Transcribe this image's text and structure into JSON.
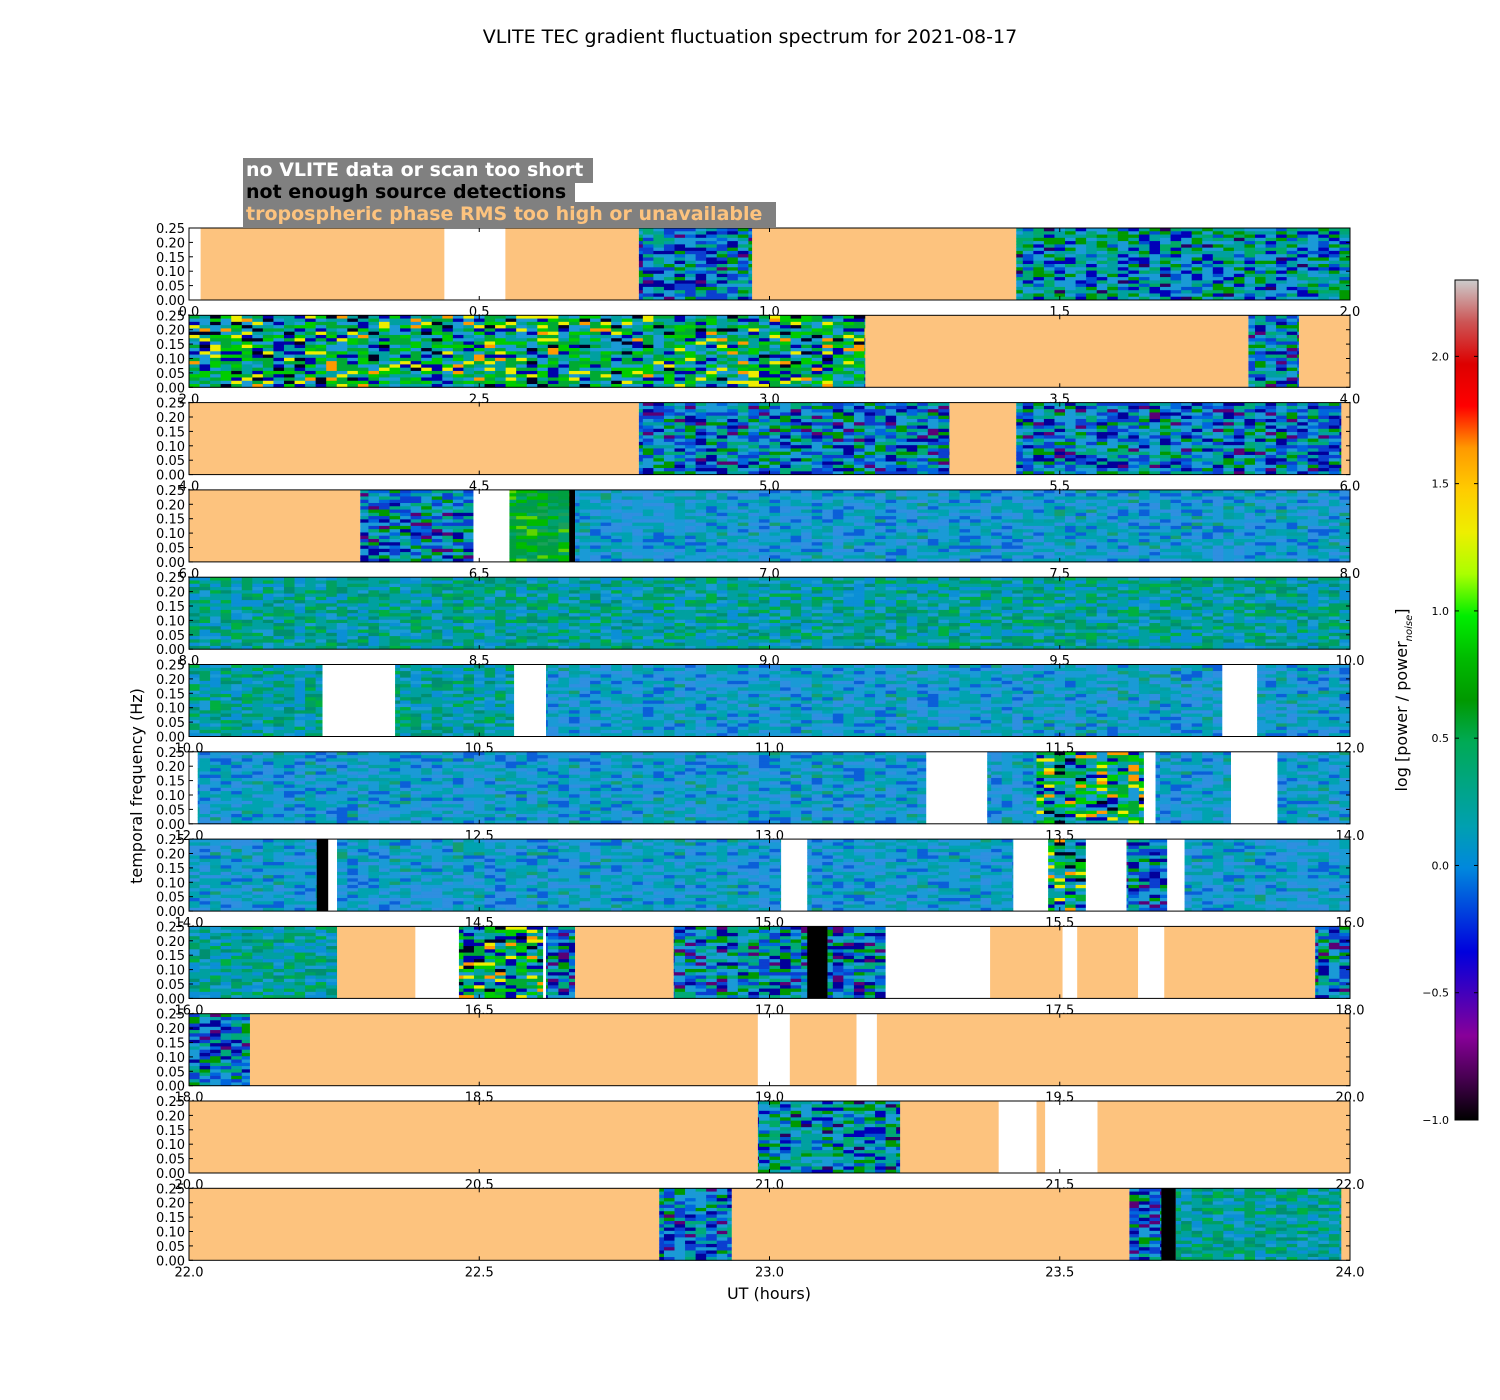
{
  "chart_data": {
    "type": "heatmap",
    "title": "VLITE TEC gradient fluctuation spectrum for 2021-08-17",
    "xlabel": "UT (hours)",
    "ylabel": "temporal frequency (Hz)",
    "ylim": [
      0,
      0.25
    ],
    "yticks": [
      "0.00",
      "0.05",
      "0.10",
      "0.15",
      "0.20",
      "0.25"
    ],
    "colorbar": {
      "label": "log [power / power",
      "label_sub": "noise",
      "label_end": "]",
      "range": [
        -1.0,
        2.3
      ],
      "ticks": [
        "-1.0",
        "-0.5",
        "0.0",
        "0.5",
        "1.0",
        "1.5",
        "2.0"
      ],
      "colormap": "nipy_spectral"
    },
    "legend": [
      {
        "label": "no VLITE data or scan too short",
        "text_color": "#ffffff",
        "box_color": "#808080"
      },
      {
        "label": "not enough source detections",
        "text_color": "#000000",
        "box_color": "#808080"
      },
      {
        "label": "tropospheric phase RMS too high or unavailable",
        "text_color": "#fdc37e",
        "box_color": "#808080"
      }
    ],
    "status_colors": {
      "nodata": "#ffffff",
      "nodet": "#000000",
      "trop": "#fdc37e"
    },
    "panels": [
      {
        "range": [
          0,
          2
        ],
        "xticks": [
          "0.0",
          "0.5",
          "1.0",
          "1.5",
          "2.0"
        ],
        "segments": [
          [
            "w",
            0.0,
            0.02
          ],
          [
            "t",
            0.02,
            0.44
          ],
          [
            "w",
            0.44,
            0.545
          ],
          [
            "t",
            0.545,
            0.775
          ],
          [
            "d",
            0.775,
            0.97,
            1
          ],
          [
            "t",
            0.97,
            1.425
          ],
          [
            "d",
            1.425,
            2.0,
            2
          ]
        ]
      },
      {
        "range": [
          2,
          4
        ],
        "xticks": [
          "2.0",
          "2.5",
          "3.0",
          "3.5",
          "4.0"
        ],
        "segments": [
          [
            "d",
            2.0,
            3.165,
            3
          ],
          [
            "t",
            3.165,
            3.825
          ],
          [
            "d",
            3.825,
            3.912,
            1
          ],
          [
            "t",
            3.912,
            4.0
          ]
        ]
      },
      {
        "range": [
          4,
          6
        ],
        "xticks": [
          "4.0",
          "4.5",
          "5.0",
          "5.5",
          "6.0"
        ],
        "segments": [
          [
            "t",
            4.0,
            4.775
          ],
          [
            "d",
            4.775,
            5.31,
            1
          ],
          [
            "t",
            5.31,
            5.425
          ],
          [
            "d",
            5.425,
            5.985,
            1
          ],
          [
            "t",
            5.985,
            6.0
          ]
        ]
      },
      {
        "range": [
          6,
          8
        ],
        "xticks": [
          "6.0",
          "6.5",
          "7.0",
          "7.5",
          "8.0"
        ],
        "segments": [
          [
            "t",
            6.0,
            6.295
          ],
          [
            "d",
            6.295,
            6.49,
            1
          ],
          [
            "w",
            6.49,
            6.552
          ],
          [
            "d",
            6.552,
            6.655,
            5
          ],
          [
            "k",
            6.655,
            6.665
          ],
          [
            "d",
            6.665,
            8.0,
            0
          ]
        ]
      },
      {
        "range": [
          8,
          10
        ],
        "xticks": [
          "8.0",
          "8.5",
          "9.0",
          "9.5",
          "10.0"
        ],
        "segments": [
          [
            "d",
            8.0,
            10.0,
            4
          ]
        ]
      },
      {
        "range": [
          10,
          12
        ],
        "xticks": [
          "10.0",
          "10.5",
          "11.0",
          "11.5",
          "12.0"
        ],
        "segments": [
          [
            "d",
            10.0,
            10.23,
            4
          ],
          [
            "w",
            10.23,
            10.355
          ],
          [
            "d",
            10.355,
            10.56,
            4
          ],
          [
            "w",
            10.56,
            10.615
          ],
          [
            "d",
            10.615,
            11.78,
            0
          ],
          [
            "w",
            11.78,
            11.84
          ],
          [
            "d",
            11.84,
            12.0,
            0
          ]
        ]
      },
      {
        "range": [
          12,
          14
        ],
        "xticks": [
          "12.0",
          "12.5",
          "13.0",
          "13.5",
          "14.0"
        ],
        "segments": [
          [
            "w",
            12.0,
            12.015
          ],
          [
            "d",
            12.015,
            13.27,
            0
          ],
          [
            "w",
            13.27,
            13.375
          ],
          [
            "d",
            13.375,
            13.46,
            0
          ],
          [
            "d",
            13.46,
            13.645,
            3
          ],
          [
            "w",
            13.645,
            13.665
          ],
          [
            "d",
            13.665,
            13.795,
            0
          ],
          [
            "w",
            13.795,
            13.875
          ],
          [
            "d",
            13.875,
            14.0,
            0
          ]
        ]
      },
      {
        "range": [
          14,
          16
        ],
        "xticks": [
          "14.0",
          "14.5",
          "15.0",
          "15.5",
          "16.0"
        ],
        "segments": [
          [
            "d",
            14.0,
            14.22,
            0
          ],
          [
            "k",
            14.22,
            14.24
          ],
          [
            "w",
            14.24,
            14.255
          ],
          [
            "d",
            14.255,
            15.02,
            0
          ],
          [
            "w",
            15.02,
            15.065
          ],
          [
            "d",
            15.065,
            15.42,
            0
          ],
          [
            "w",
            15.42,
            15.48
          ],
          [
            "d",
            15.48,
            15.545,
            3
          ],
          [
            "w",
            15.545,
            15.615
          ],
          [
            "d",
            15.615,
            15.685,
            1
          ],
          [
            "w",
            15.685,
            15.715
          ],
          [
            "d",
            15.715,
            16.0,
            0
          ]
        ]
      },
      {
        "range": [
          16,
          18
        ],
        "xticks": [
          "16.0",
          "16.5",
          "17.0",
          "17.5",
          "18.0"
        ],
        "segments": [
          [
            "d",
            16.0,
            16.255,
            4
          ],
          [
            "t",
            16.255,
            16.39
          ],
          [
            "w",
            16.39,
            16.465
          ],
          [
            "d",
            16.465,
            16.61,
            3
          ],
          [
            "w",
            16.61,
            16.615
          ],
          [
            "d",
            16.615,
            16.665,
            1
          ],
          [
            "t",
            16.665,
            16.835
          ],
          [
            "d",
            16.835,
            17.065,
            1
          ],
          [
            "k",
            17.065,
            17.1
          ],
          [
            "d",
            17.1,
            17.2,
            1
          ],
          [
            "w",
            17.2,
            17.38
          ],
          [
            "t",
            17.38,
            17.505
          ],
          [
            "w",
            17.505,
            17.53
          ],
          [
            "t",
            17.53,
            17.635
          ],
          [
            "w",
            17.635,
            17.68
          ],
          [
            "t",
            17.68,
            17.94
          ],
          [
            "d",
            17.94,
            18.0,
            1
          ]
        ]
      },
      {
        "range": [
          18,
          20
        ],
        "xticks": [
          "18.0",
          "18.5",
          "19.0",
          "19.5",
          "20.0"
        ],
        "segments": [
          [
            "d",
            18.0,
            18.105,
            1
          ],
          [
            "t",
            18.105,
            18.98
          ],
          [
            "w",
            18.98,
            19.035
          ],
          [
            "t",
            19.035,
            19.15
          ],
          [
            "w",
            19.15,
            19.185
          ],
          [
            "t",
            19.185,
            20.0
          ]
        ]
      },
      {
        "range": [
          20,
          22
        ],
        "xticks": [
          "20.0",
          "20.5",
          "21.0",
          "21.5",
          "22.0"
        ],
        "segments": [
          [
            "t",
            20.0,
            20.98
          ],
          [
            "d",
            20.98,
            21.225,
            2
          ],
          [
            "t",
            21.225,
            21.395
          ],
          [
            "w",
            21.395,
            21.46
          ],
          [
            "t",
            21.46,
            21.475
          ],
          [
            "w",
            21.475,
            21.565
          ],
          [
            "t",
            21.565,
            22.0
          ]
        ]
      },
      {
        "range": [
          22,
          24
        ],
        "xticks": [
          "22.0",
          "22.5",
          "23.0",
          "23.5",
          "24.0"
        ],
        "segments": [
          [
            "t",
            22.0,
            22.81
          ],
          [
            "d",
            22.81,
            22.935,
            1
          ],
          [
            "t",
            22.935,
            23.62
          ],
          [
            "d",
            23.62,
            23.675,
            1
          ],
          [
            "k",
            23.675,
            23.7
          ],
          [
            "d",
            23.7,
            23.985,
            4
          ],
          [
            "t",
            23.985,
            24.0
          ]
        ]
      }
    ]
  }
}
